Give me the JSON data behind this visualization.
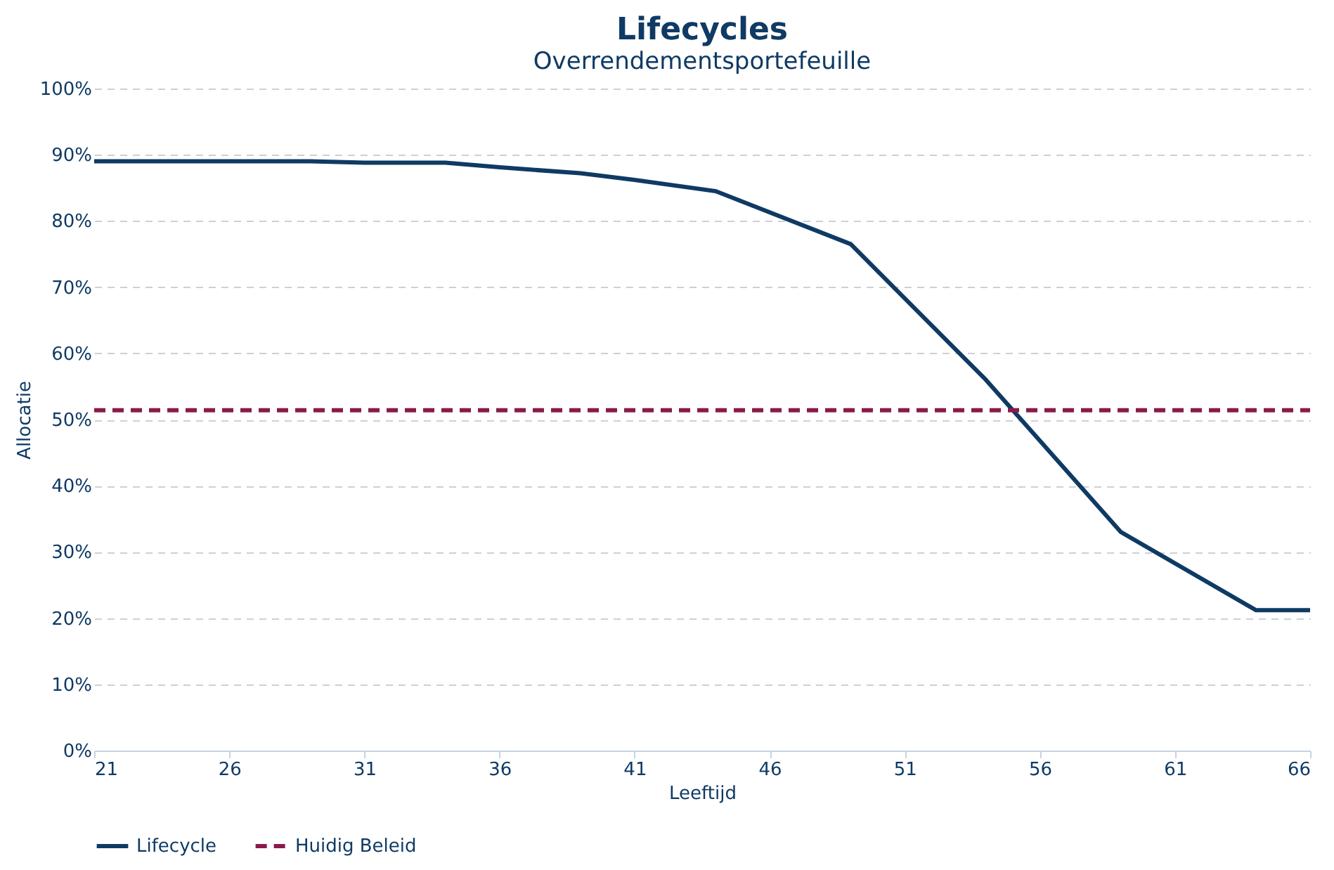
{
  "chart_data": {
    "type": "line",
    "title": "Lifecycles",
    "subtitle": "Overrendementsportefeuille",
    "xlabel": "Leeftijd",
    "ylabel": "Allocatie",
    "xlim": [
      21,
      66
    ],
    "xticks": [
      21,
      26,
      31,
      36,
      41,
      46,
      51,
      56,
      61,
      66
    ],
    "ylim": [
      0,
      100
    ],
    "yticks": [
      {
        "value": 0,
        "label": "0%"
      },
      {
        "value": 10,
        "label": "10%"
      },
      {
        "value": 20,
        "label": "20%"
      },
      {
        "value": 30,
        "label": "30%"
      },
      {
        "value": 40,
        "label": "40%"
      },
      {
        "value": 50,
        "label": "50%"
      },
      {
        "value": 60,
        "label": "60%"
      },
      {
        "value": 70,
        "label": "70%"
      },
      {
        "value": 80,
        "label": "80%"
      },
      {
        "value": 90,
        "label": "90%"
      },
      {
        "value": 100,
        "label": "100%"
      }
    ],
    "grid": "y",
    "legend": "bottom",
    "marker": "none",
    "series": [
      {
        "name": "Lifecycle",
        "color": "#0f3a64",
        "line_style": "solid",
        "x": [
          21,
          29,
          31,
          34,
          36,
          39,
          41,
          44,
          49,
          54,
          59,
          64,
          66
        ],
        "values": [
          89,
          89,
          88.8,
          88.8,
          88.1,
          87.2,
          86.2,
          84.5,
          76.5,
          56,
          33,
          21.2,
          21.2
        ]
      },
      {
        "name": "Huidig Beleid",
        "color": "#8b1a4a",
        "line_style": "dashed",
        "x": [
          21,
          66
        ],
        "values": [
          51.4,
          51.4
        ]
      }
    ]
  }
}
